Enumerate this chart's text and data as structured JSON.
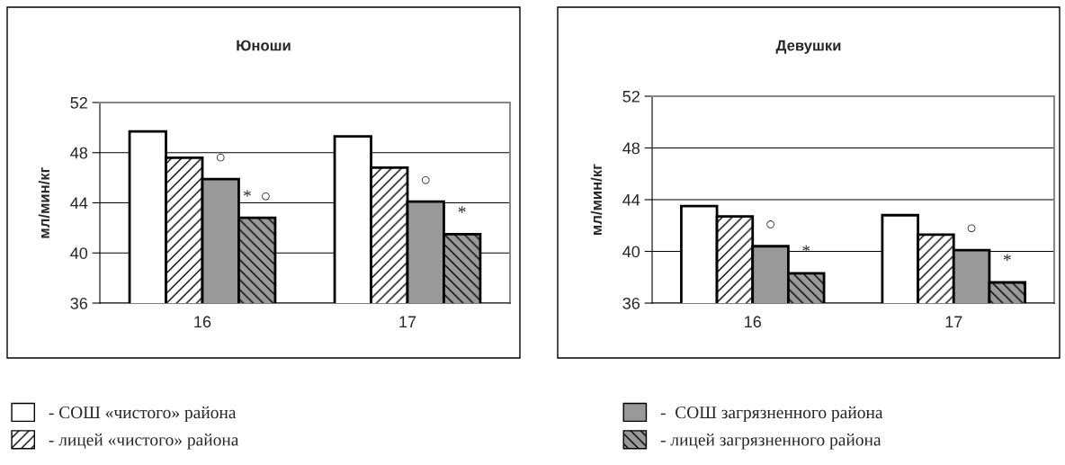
{
  "chart_data": [
    {
      "type": "bar",
      "title": "Юноши",
      "ylabel": "мл/мин/кг",
      "categories": [
        "16",
        "17"
      ],
      "ylim": [
        36,
        52
      ],
      "yticks": [
        36,
        40,
        44,
        48,
        52
      ],
      "grid": "y",
      "legend": "bottom",
      "series": [
        {
          "name": "- СОШ «чистого» района",
          "color": "#ffffff",
          "values": [
            49.7,
            49.3
          ]
        },
        {
          "name": "- лицей «чистого» района",
          "color": "#ffffff",
          "values": [
            47.6,
            46.8
          ]
        },
        {
          "name": "-  СОШ загрязненного района",
          "color": "#999999",
          "values": [
            45.9,
            44.1
          ],
          "value_labels": [
            "○",
            "○"
          ]
        },
        {
          "name": "- лицей загрязненного района",
          "color": "#999999",
          "values": [
            42.8,
            41.5
          ],
          "value_labels": [
            "*  ○",
            "*"
          ]
        }
      ]
    },
    {
      "type": "bar",
      "title": "Девушки",
      "ylabel": "мл/мин/кг",
      "categories": [
        "16",
        "17"
      ],
      "ylim": [
        36,
        52
      ],
      "yticks": [
        36,
        40,
        44,
        48,
        52
      ],
      "grid": "y",
      "series": [
        {
          "color": "#ffffff",
          "values": [
            43.5,
            42.8
          ]
        },
        {
          "color": "#ffffff",
          "values": [
            42.7,
            41.3
          ]
        },
        {
          "color": "#999999",
          "values": [
            40.4,
            40.1
          ],
          "value_labels": [
            "○",
            "○"
          ]
        },
        {
          "color": "#999999",
          "values": [
            38.3,
            37.6
          ],
          "value_labels": [
            "*",
            "*"
          ]
        }
      ]
    }
  ]
}
